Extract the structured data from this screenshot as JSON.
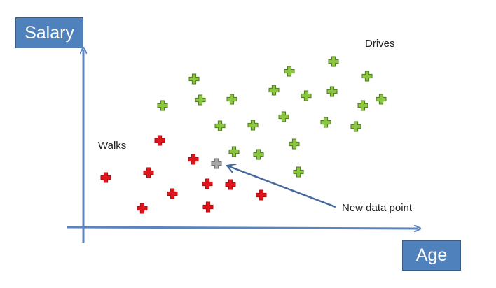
{
  "axes": {
    "y_label": "Salary",
    "x_label": "Age"
  },
  "labels": {
    "group_walks": "Walks",
    "group_drives": "Drives",
    "new_point": "New data point"
  },
  "colors": {
    "axis": "#5b84bf",
    "box_fill": "#4f81bd",
    "walks": "#e0141b",
    "drives": "#8cc63f",
    "new": "#a6a6a6"
  },
  "points": {
    "walks": [
      [
        228,
        201
      ],
      [
        276,
        228
      ],
      [
        151,
        254
      ],
      [
        212,
        247
      ],
      [
        246,
        277
      ],
      [
        296,
        263
      ],
      [
        329,
        264
      ],
      [
        373,
        279
      ],
      [
        203,
        298
      ],
      [
        297,
        296
      ]
    ],
    "drives": [
      [
        277,
        113
      ],
      [
        413,
        102
      ],
      [
        476,
        88
      ],
      [
        524,
        109
      ],
      [
        232,
        151
      ],
      [
        286,
        143
      ],
      [
        331,
        142
      ],
      [
        391,
        129
      ],
      [
        437,
        137
      ],
      [
        474,
        131
      ],
      [
        518,
        151
      ],
      [
        544,
        142
      ],
      [
        314,
        180
      ],
      [
        361,
        179
      ],
      [
        405,
        167
      ],
      [
        465,
        175
      ],
      [
        508,
        181
      ],
      [
        334,
        217
      ],
      [
        369,
        221
      ],
      [
        420,
        206
      ],
      [
        426,
        246
      ]
    ],
    "new": [
      [
        309,
        234
      ]
    ]
  }
}
